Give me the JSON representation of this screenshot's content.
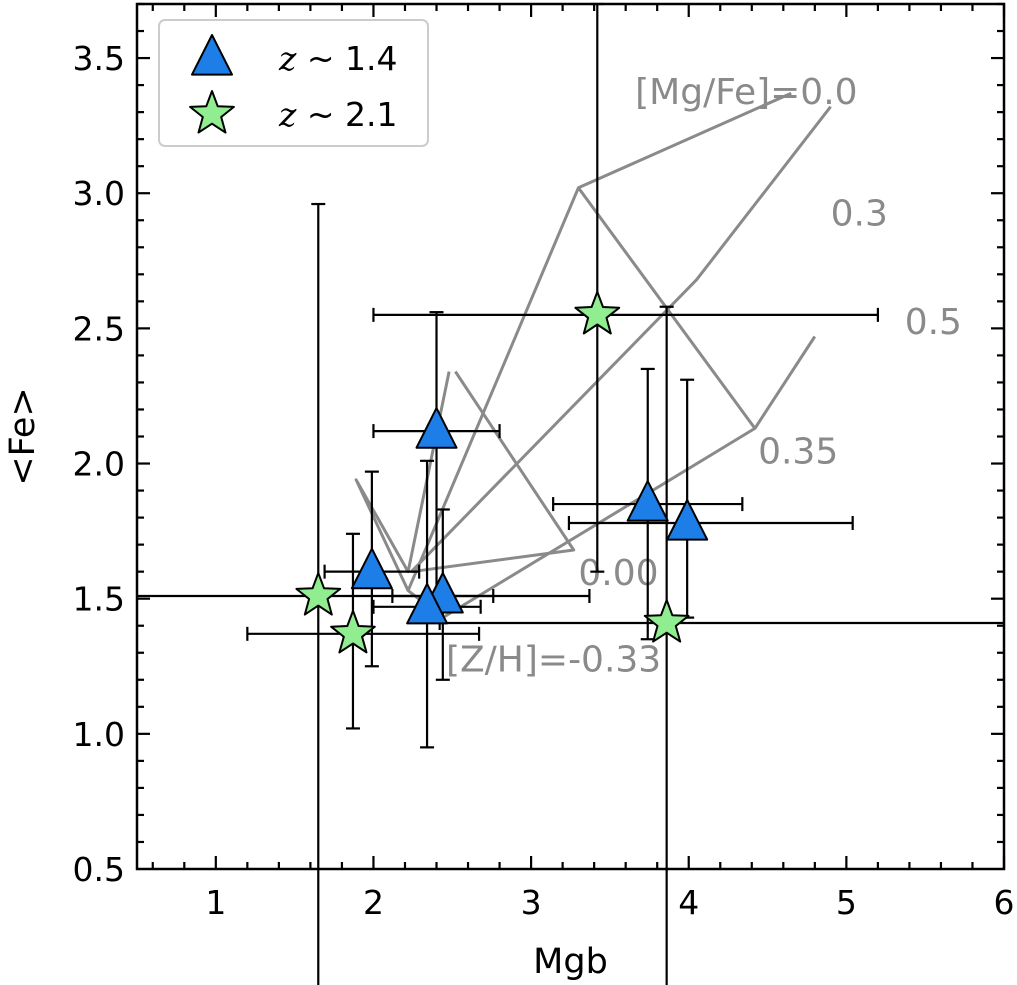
{
  "chart_data": {
    "type": "scatter",
    "xlabel": "Mgb",
    "ylabel": "<Fe>",
    "xlim": [
      0.5,
      6.0
    ],
    "ylim": [
      0.5,
      3.7
    ],
    "x_ticks": [
      1,
      2,
      3,
      4,
      5,
      6
    ],
    "y_ticks": [
      0.5,
      1.0,
      1.5,
      2.0,
      2.5,
      3.0,
      3.5
    ],
    "x_tick_labels": [
      "1",
      "2",
      "3",
      "4",
      "5",
      "6"
    ],
    "y_tick_labels": [
      "0.5",
      "1.0",
      "1.5",
      "2.0",
      "2.5",
      "3.0",
      "3.5"
    ],
    "legend_position": "top-left",
    "series": [
      {
        "name_prefix": "z",
        "name_suffix": " ~ 1.4",
        "marker": "triangle",
        "color": "#1e7ee8",
        "points": [
          {
            "x": 2.4,
            "y": 2.12,
            "xerr": [
              0.4,
              0.4
            ],
            "yerr": [
              0.62,
              0.44
            ]
          },
          {
            "x": 1.99,
            "y": 1.6,
            "xerr": [
              0.3,
              0.3
            ],
            "yerr": [
              0.35,
              0.37
            ]
          },
          {
            "x": 2.44,
            "y": 1.51,
            "xerr": [
              0.32,
              0.32
            ],
            "yerr": [
              0.31,
              0.32
            ]
          },
          {
            "x": 2.34,
            "y": 1.47,
            "xerr": [
              0.34,
              0.34
            ],
            "yerr": [
              0.52,
              0.54
            ]
          },
          {
            "x": 3.74,
            "y": 1.85,
            "xerr": [
              0.6,
              0.6
            ],
            "yerr": [
              0.5,
              0.5
            ]
          },
          {
            "x": 3.99,
            "y": 1.78,
            "xerr": [
              0.75,
              1.05
            ],
            "yerr": [
              0.35,
              0.53
            ]
          }
        ]
      },
      {
        "name_prefix": "z",
        "name_suffix": " ~ 2.1",
        "marker": "star",
        "color": "#90ee90",
        "points": [
          {
            "x": 3.42,
            "y": 2.55,
            "xerr": [
              1.42,
              1.78
            ],
            "yerr": [
              0.95,
              1.15
            ]
          },
          {
            "x": 1.65,
            "y": 1.51,
            "xerr": [
              1.15,
              1.72
            ],
            "yerr": [
              1.5,
              1.45
            ]
          },
          {
            "x": 1.87,
            "y": 1.37,
            "xerr": [
              0.67,
              0.8
            ],
            "yerr": [
              0.35,
              0.37
            ]
          },
          {
            "x": 3.86,
            "y": 1.41,
            "xerr": [
              1.44,
              2.14
            ],
            "yerr": [
              1.5,
              1.17
            ]
          }
        ]
      }
    ],
    "model_grid": {
      "color": "#8a8a8a",
      "mgfe_lines": [
        {
          "label": "[Mg/Fe]=0.0",
          "points": [
            [
              2.22,
              1.53
            ],
            [
              3.3,
              3.02
            ],
            [
              4.65,
              3.37
            ]
          ]
        },
        {
          "label": "0.3",
          "points": [
            [
              2.24,
              1.6
            ],
            [
              4.05,
              2.68
            ],
            [
              4.9,
              3.32
            ]
          ]
        },
        {
          "label": "0.5",
          "points": [
            [
              2.44,
              1.43
            ],
            [
              4.42,
              2.13
            ],
            [
              4.8,
              2.47
            ]
          ]
        }
      ],
      "zh_lines": [
        {
          "label": "[Z/H]=-0.33",
          "points": [
            [
              2.48,
              2.34
            ],
            [
              2.22,
              1.6
            ],
            [
              1.89,
              1.94
            ],
            [
              2.22,
              1.53
            ],
            [
              2.44,
              1.43
            ]
          ]
        },
        {
          "label": "0.00",
          "points": [
            [
              2.52,
              2.34
            ],
            [
              3.27,
              1.68
            ],
            [
              2.24,
              1.6
            ]
          ]
        },
        {
          "label": "0.35",
          "points": [
            [
              3.3,
              3.02
            ],
            [
              4.42,
              2.13
            ]
          ]
        }
      ],
      "labels": [
        {
          "text": "[Mg/Fe]=0.0",
          "x": 3.66,
          "y": 3.33
        },
        {
          "text": "0.3",
          "x": 4.9,
          "y": 2.88
        },
        {
          "text": "0.5",
          "x": 5.37,
          "y": 2.48
        },
        {
          "text": "0.35",
          "x": 4.44,
          "y": 2.0
        },
        {
          "text": "0.00",
          "x": 3.3,
          "y": 1.55
        },
        {
          "text": "[Z/H]=-0.33",
          "x": 2.46,
          "y": 1.23
        }
      ]
    }
  }
}
